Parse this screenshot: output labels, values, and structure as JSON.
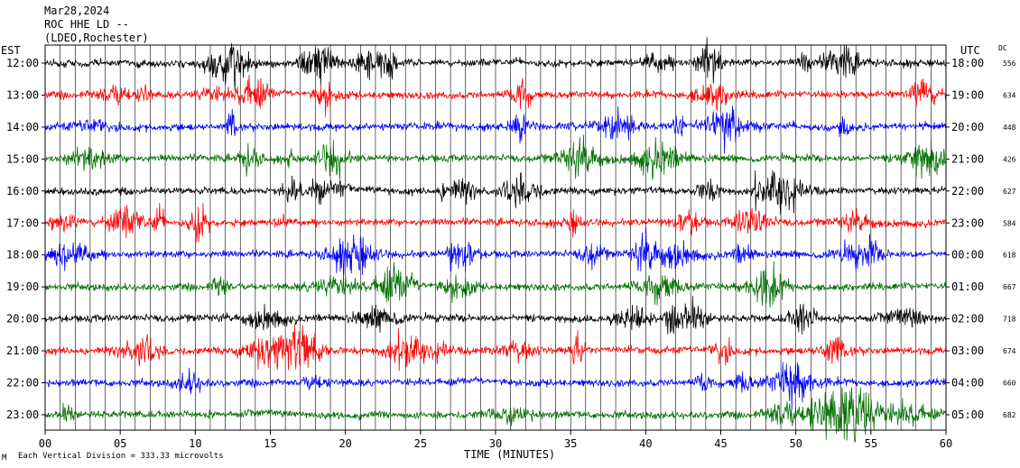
{
  "header": {
    "date": "Mar28,2024",
    "station": "ROC HHE LD --",
    "network": "(LDEO,Rochester)"
  },
  "axis_labels": {
    "left_timezone": "EST",
    "right_timezone": "UTC",
    "dc_header": "DC",
    "xlabel": "TIME (MINUTES)"
  },
  "footer": {
    "marker": "M",
    "scale_note": "Each Vertical Division = 333.33 microvolts"
  },
  "colors": {
    "trace_cycle": [
      "#000000",
      "#ff0000",
      "#0000ff",
      "#007000"
    ],
    "grid": "#000000",
    "background": "#ffffff"
  },
  "chart_data": {
    "type": "line",
    "subtype": "helicorder",
    "title": "ROC HHE LD --",
    "xlabel": "TIME (MINUTES)",
    "xlim": [
      0,
      60
    ],
    "x_ticks": [
      "00",
      "05",
      "10",
      "15",
      "20",
      "25",
      "30",
      "35",
      "40",
      "45",
      "50",
      "55",
      "60"
    ],
    "grid": true,
    "rows": [
      {
        "est": "12:00",
        "utc": "18:00",
        "dc": "556",
        "color": "#000000"
      },
      {
        "est": "13:00",
        "utc": "19:00",
        "dc": "634",
        "color": "#ff0000"
      },
      {
        "est": "14:00",
        "utc": "20:00",
        "dc": "448",
        "color": "#0000ff"
      },
      {
        "est": "15:00",
        "utc": "21:00",
        "dc": "426",
        "color": "#007000"
      },
      {
        "est": "16:00",
        "utc": "22:00",
        "dc": "627",
        "color": "#000000"
      },
      {
        "est": "17:00",
        "utc": "23:00",
        "dc": "584",
        "color": "#ff0000"
      },
      {
        "est": "18:00",
        "utc": "00:00",
        "dc": "618",
        "color": "#0000ff"
      },
      {
        "est": "19:00",
        "utc": "01:00",
        "dc": "667",
        "color": "#007000"
      },
      {
        "est": "20:00",
        "utc": "02:00",
        "dc": "718",
        "color": "#000000"
      },
      {
        "est": "21:00",
        "utc": "03:00",
        "dc": "674",
        "color": "#ff0000"
      },
      {
        "est": "22:00",
        "utc": "04:00",
        "dc": "660",
        "color": "#0000ff"
      },
      {
        "est": "23:00",
        "utc": "05:00",
        "dc": "682",
        "color": "#007000"
      }
    ],
    "vertical_division": "333.33 microvolts"
  }
}
